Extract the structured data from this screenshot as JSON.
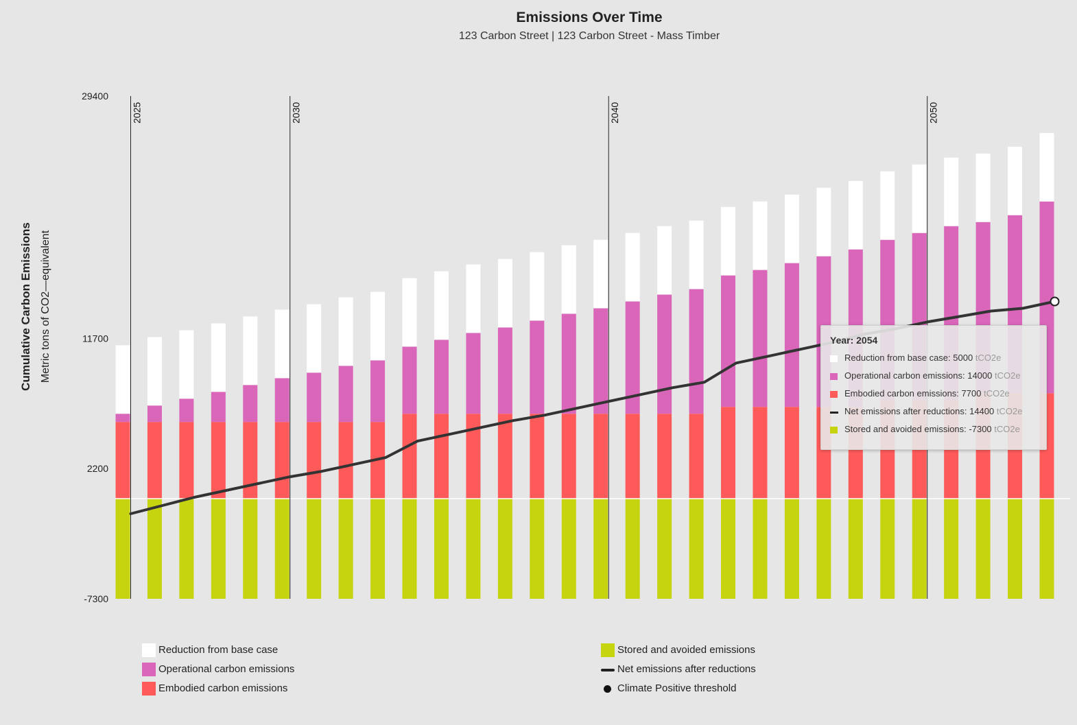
{
  "colors": {
    "reduction": "#ffffff",
    "operational": "#d966b9",
    "embodied": "#ff5a5a",
    "stored": "#c6d410",
    "net_line": "#333333",
    "background": "#e6e6e6"
  },
  "chart_data": {
    "type": "bar",
    "title": "Emissions Over Time",
    "subtitle": "123 Carbon Street | 123 Carbon Street - Mass Timber",
    "ylabel": "Cumulative Carbon Emissions",
    "ylabel_sub": "Metric tons of CO2—equivalent",
    "ylim": [
      -7300,
      29400
    ],
    "yticks": [
      "29400",
      "11700",
      "2200",
      "-7300"
    ],
    "year_markers": [
      "2025",
      "2030",
      "2040",
      "2050"
    ],
    "x": [
      2025,
      2026,
      2027,
      2028,
      2029,
      2030,
      2031,
      2032,
      2033,
      2034,
      2035,
      2036,
      2037,
      2038,
      2039,
      2040,
      2041,
      2042,
      2043,
      2044,
      2045,
      2046,
      2047,
      2048,
      2049,
      2050,
      2051,
      2052,
      2053,
      2054
    ],
    "series": [
      {
        "name": "Stored and avoided emissions",
        "key": "stored",
        "values": [
          -7300,
          -7300,
          -7300,
          -7300,
          -7300,
          -7300,
          -7300,
          -7300,
          -7300,
          -7300,
          -7300,
          -7300,
          -7300,
          -7300,
          -7300,
          -7300,
          -7300,
          -7300,
          -7300,
          -7300,
          -7300,
          -7300,
          -7300,
          -7300,
          -7300,
          -7300,
          -7300,
          -7300,
          -7300,
          -7300
        ]
      },
      {
        "name": "Embodied carbon emissions",
        "key": "embodied",
        "values": [
          5600,
          5600,
          5600,
          5600,
          5600,
          5600,
          5600,
          5600,
          5600,
          6200,
          6200,
          6200,
          6200,
          6200,
          6200,
          6200,
          6200,
          6200,
          6200,
          6700,
          6700,
          6700,
          6700,
          6700,
          7200,
          7200,
          7200,
          7700,
          7700,
          7700
        ]
      },
      {
        "name": "Operational carbon emissions",
        "key": "operational",
        "values": [
          600,
          1200,
          1700,
          2200,
          2700,
          3200,
          3600,
          4100,
          4500,
          4900,
          5400,
          5900,
          6300,
          6800,
          7300,
          7700,
          8200,
          8700,
          9100,
          9600,
          10000,
          10500,
          11000,
          11500,
          11700,
          12200,
          12700,
          12500,
          13000,
          14000
        ]
      },
      {
        "name": "Reduction from base case",
        "key": "reduction",
        "values": [
          5000,
          5000,
          5000,
          5000,
          5000,
          5000,
          5000,
          5000,
          5000,
          5000,
          5000,
          5000,
          5000,
          5000,
          5000,
          5000,
          5000,
          5000,
          5000,
          5000,
          5000,
          5000,
          5000,
          5000,
          5000,
          5000,
          5000,
          5000,
          5000,
          5000
        ]
      },
      {
        "name": "Net emissions after reductions",
        "key": "net",
        "type": "line",
        "values": [
          -1100,
          -500,
          100,
          600,
          1100,
          1600,
          2000,
          2500,
          3000,
          4200,
          4700,
          5200,
          5700,
          6100,
          6600,
          7100,
          7600,
          8100,
          8500,
          9900,
          10400,
          10900,
          11400,
          12000,
          12400,
          12900,
          13300,
          13700,
          13900,
          14400
        ]
      }
    ],
    "legend": {
      "placement": "bottom",
      "left": [
        {
          "label": "Reduction from base case",
          "key": "reduction",
          "kind": "swatch"
        },
        {
          "label": "Operational carbon emissions",
          "key": "operational",
          "kind": "swatch"
        },
        {
          "label": "Embodied carbon emissions",
          "key": "embodied",
          "kind": "swatch"
        }
      ],
      "right": [
        {
          "label": "Stored and avoided emissions",
          "key": "stored",
          "kind": "swatch"
        },
        {
          "label": "Net emissions after reductions",
          "key": "net",
          "kind": "line"
        },
        {
          "label": "Climate Positive threshold",
          "key": "threshold",
          "kind": "dot"
        }
      ]
    },
    "tooltip": {
      "header": "Year: 2054",
      "unit": "tCO2e",
      "rows": [
        {
          "key": "reduction",
          "label": "Reduction from base case:",
          "value": "5000"
        },
        {
          "key": "operational",
          "label": "Operational carbon emissions:",
          "value": "14000"
        },
        {
          "key": "embodied",
          "label": "Embodied carbon emissions:",
          "value": "7700"
        },
        {
          "key": "net",
          "label": "Net emissions after reductions:",
          "value": "14400"
        },
        {
          "key": "stored",
          "label": "Stored and avoided emissions:",
          "value": "-7300"
        }
      ]
    }
  }
}
